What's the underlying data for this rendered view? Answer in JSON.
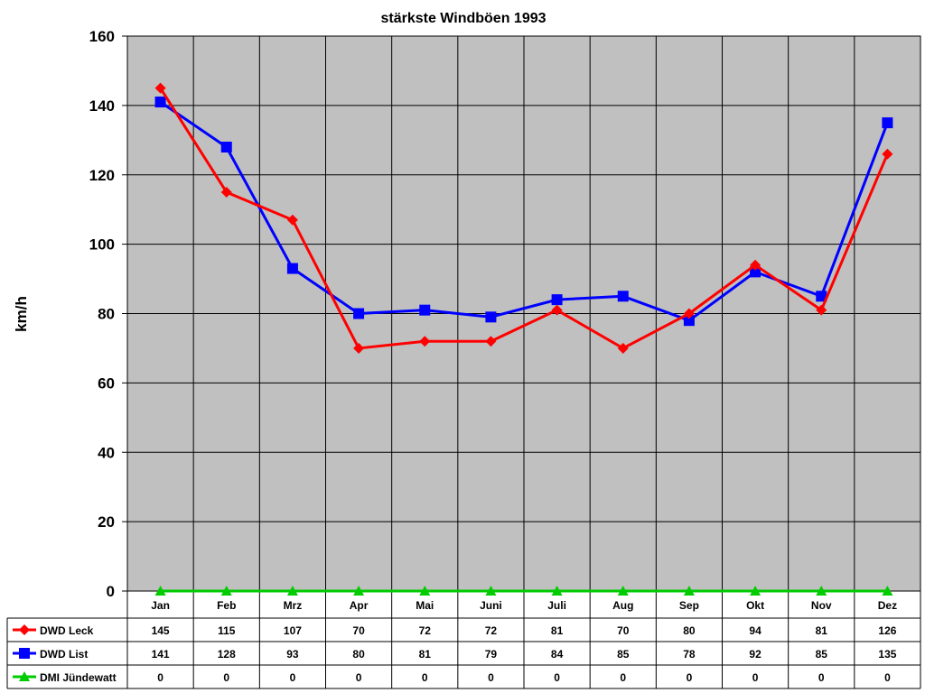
{
  "chart_data": {
    "type": "line",
    "title": "stärkste Windböen 1993",
    "ylabel": "km/h",
    "xlabel": "",
    "ylim": [
      0,
      160
    ],
    "yticks": [
      0,
      20,
      40,
      60,
      80,
      100,
      120,
      140,
      160
    ],
    "grid": true,
    "legend": "data-table-left",
    "categories": [
      "Jan",
      "Feb",
      "Mrz",
      "Apr",
      "Mai",
      "Juni",
      "Juli",
      "Aug",
      "Sep",
      "Okt",
      "Nov",
      "Dez"
    ],
    "series": [
      {
        "name": "DWD Leck",
        "color": "#ff0000",
        "marker": "diamond",
        "values": [
          145,
          115,
          107,
          70,
          72,
          72,
          81,
          70,
          80,
          94,
          81,
          126
        ]
      },
      {
        "name": "DWD List",
        "color": "#0000ff",
        "marker": "square",
        "values": [
          141,
          128,
          93,
          80,
          81,
          79,
          84,
          85,
          78,
          92,
          85,
          135
        ]
      },
      {
        "name": "DMI Jündewatt",
        "color": "#00cc00",
        "marker": "triangle",
        "values": [
          0,
          0,
          0,
          0,
          0,
          0,
          0,
          0,
          0,
          0,
          0,
          0
        ]
      }
    ],
    "plot_background": "#c0c0c0"
  }
}
